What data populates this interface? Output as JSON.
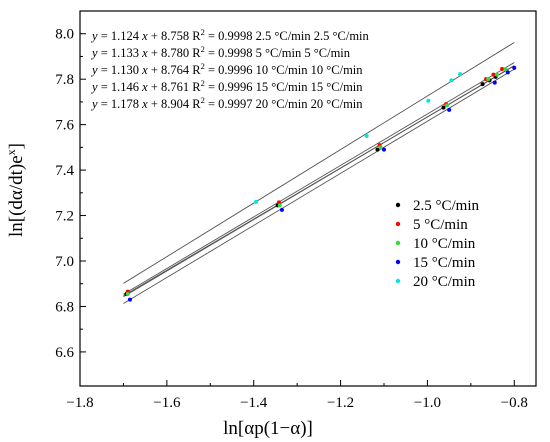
{
  "chart_data": {
    "type": "scatter",
    "title": "",
    "xlabel": "ln[αp(1−α)]",
    "ylabel": "ln[(dα/dt)e^x]",
    "ylabel_main": "ln[(dα/dt)e",
    "ylabel_sup": "x",
    "ylabel_end": "]",
    "xlim": [
      -1.8,
      -0.75
    ],
    "ylim": [
      6.45,
      8.1
    ],
    "x_ticks": [
      -1.8,
      -1.6,
      -1.4,
      -1.2,
      -1.0,
      -0.8
    ],
    "x_tick_labels": [
      "−1.8",
      "−1.6",
      "−1.4",
      "−1.2",
      "−1.0",
      "−0.8"
    ],
    "y_ticks": [
      6.6,
      6.8,
      7.0,
      7.2,
      7.4,
      7.6,
      7.8,
      8.0
    ],
    "y_tick_labels": [
      "6.6",
      "6.8",
      "7.0",
      "7.2",
      "7.4",
      "7.6",
      "7.8",
      "8.0"
    ],
    "grid": false,
    "legend_position": "middle-right",
    "series": [
      {
        "name": "2.5 °C/min",
        "color": "#000000",
        "fit": {
          "slope": 1.124,
          "intercept": 8.758
        },
        "equation": {
          "slope": "1.124",
          "intercept": "8.758",
          "r2": "0.9998",
          "label": "2.5 °C/min",
          "label2": "2.5 °C/min"
        },
        "x": [
          -1.693,
          -1.345,
          -1.115,
          -0.963,
          -0.873,
          -0.857,
          -0.843
        ],
        "y": [
          6.855,
          7.245,
          7.49,
          7.675,
          7.778,
          7.795,
          7.81
        ]
      },
      {
        "name": "5 °C/min",
        "color": "#ff0000",
        "fit": {
          "slope": 1.133,
          "intercept": 8.78
        },
        "equation": {
          "slope": "1.133",
          "intercept": "8.780",
          "r2": "0.9998",
          "label": "5 °C/min",
          "label2": "5 °C/min"
        },
        "x": [
          -1.69,
          -1.342,
          -1.11,
          -0.957,
          -0.865,
          -0.848,
          -0.828
        ],
        "y": [
          6.865,
          7.258,
          7.51,
          7.69,
          7.8,
          7.82,
          7.845
        ]
      },
      {
        "name": "10 °C/min",
        "color": "#33dd33",
        "fit": {
          "slope": 1.13,
          "intercept": 8.764
        },
        "equation": {
          "slope": "1.130",
          "intercept": "8.764",
          "r2": "0.9996",
          "label": "10 °C/min",
          "label2": "10 °C/min"
        },
        "x": [
          -1.69,
          -1.34,
          -1.108,
          -0.955,
          -0.86,
          -0.84,
          -0.82
        ],
        "y": [
          6.855,
          7.245,
          7.5,
          7.685,
          7.8,
          7.82,
          7.845
        ]
      },
      {
        "name": "15 °C/min",
        "color": "#0000ff",
        "fit": {
          "slope": 1.146,
          "intercept": 8.761
        },
        "equation": {
          "slope": "1.146",
          "intercept": "8.761",
          "r2": "0.9996",
          "label": "15 °C/min",
          "label2": "15 °C/min"
        },
        "x": [
          -1.685,
          -1.335,
          -1.1,
          -0.95,
          -0.845,
          -0.815,
          -0.8
        ],
        "y": [
          6.83,
          7.225,
          7.49,
          7.665,
          7.785,
          7.83,
          7.85
        ]
      },
      {
        "name": "20 °C/min",
        "color": "#00e5e5",
        "fit": {
          "slope": 1.178,
          "intercept": 8.904
        },
        "equation": {
          "slope": "1.178",
          "intercept": "8.904",
          "r2": "0.9997",
          "label": "20 °C/min",
          "label2": "20 °C/min"
        },
        "x": [
          -1.395,
          -1.14,
          -0.998,
          -0.945,
          -0.925
        ],
        "y": [
          7.26,
          7.55,
          7.705,
          7.795,
          7.822
        ]
      }
    ]
  }
}
